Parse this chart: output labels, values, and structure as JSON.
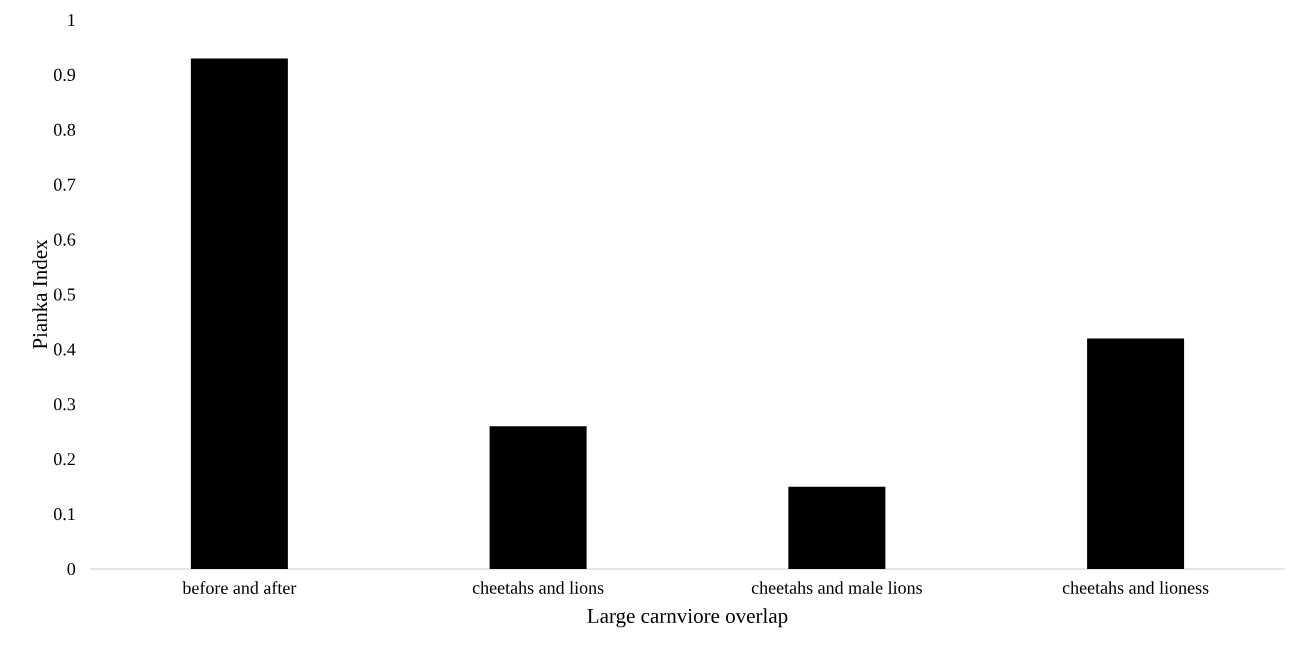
{
  "chart_data": {
    "type": "bar",
    "xlabel": "Large carnviore overlap",
    "ylabel": "Pianka Index",
    "categories": [
      "before and after",
      "cheetahs and lions",
      "cheetahs and male lions",
      "cheetahs and lioness"
    ],
    "values": [
      0.93,
      0.26,
      0.15,
      0.42
    ],
    "color": "#000000",
    "ylim": [
      0,
      1
    ],
    "yticks": [
      0,
      0.1,
      0.2,
      0.3,
      0.4,
      0.5,
      0.6,
      0.7,
      0.8,
      0.9,
      1
    ]
  }
}
